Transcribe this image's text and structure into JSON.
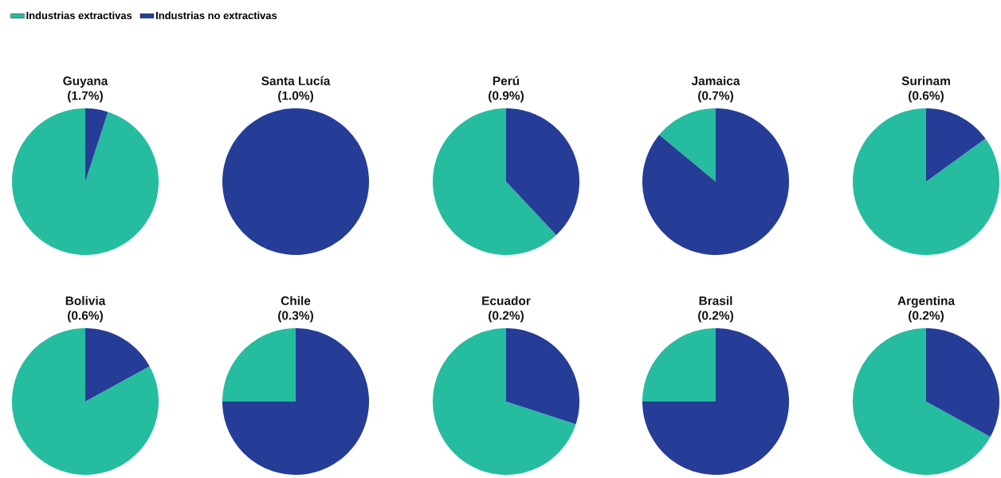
{
  "chart_data": [
    {
      "type": "pie",
      "title": "Guyana",
      "subtitle": "(1.7%)",
      "categories": [
        "Industrias extractivas",
        "Industrias no extractivas"
      ],
      "values": [
        95,
        5
      ],
      "colors": [
        "#26bc9f",
        "#253d96"
      ],
      "legend": "top"
    },
    {
      "type": "pie",
      "title": "Santa Lucía",
      "subtitle": "(1.0%)",
      "categories": [
        null,
        null
      ],
      "values": [
        0,
        100
      ],
      "colors": [
        "#26bc9f",
        "#253d96"
      ]
    },
    {
      "type": "pie",
      "title": "Perú",
      "subtitle": "(0.9%)",
      "categories": [
        null,
        null
      ],
      "values": [
        62,
        38
      ],
      "colors": [
        "#26bc9f",
        "#253d96"
      ]
    },
    {
      "type": "pie",
      "title": "Jamaica",
      "subtitle": "(0.7%)",
      "categories": [
        null,
        null
      ],
      "values": [
        14,
        86
      ],
      "colors": [
        "#26bc9f",
        "#253d96"
      ]
    },
    {
      "type": "pie",
      "title": "Surinam",
      "subtitle": "(0.6%)",
      "categories": [
        null,
        null
      ],
      "values": [
        85,
        15
      ],
      "colors": [
        "#26bc9f",
        "#253d96"
      ]
    },
    {
      "type": "pie",
      "title": "Bolivia",
      "subtitle": "(0.6%)",
      "categories": [
        null,
        null
      ],
      "values": [
        83,
        17
      ],
      "colors": [
        "#26bc9f",
        "#253d96"
      ]
    },
    {
      "type": "pie",
      "title": "Chile",
      "subtitle": "(0.3%)",
      "categories": [
        null,
        null
      ],
      "values": [
        25,
        75
      ],
      "colors": [
        "#26bc9f",
        "#253d96"
      ]
    },
    {
      "type": "pie",
      "title": "Ecuador",
      "subtitle": "(0.2%)",
      "categories": [
        null,
        null
      ],
      "values": [
        70,
        30
      ],
      "colors": [
        "#26bc9f",
        "#253d96"
      ]
    },
    {
      "type": "pie",
      "title": "Brasil",
      "subtitle": "(0.2%)",
      "categories": [
        null,
        null
      ],
      "values": [
        25,
        75
      ],
      "colors": [
        "#26bc9f",
        "#253d96"
      ]
    },
    {
      "type": "pie",
      "title": "Argentina",
      "subtitle": "(0.2%)",
      "categories": [
        null,
        null
      ],
      "values": [
        67,
        33
      ],
      "colors": [
        "#26bc9f",
        "#253d96"
      ]
    }
  ]
}
